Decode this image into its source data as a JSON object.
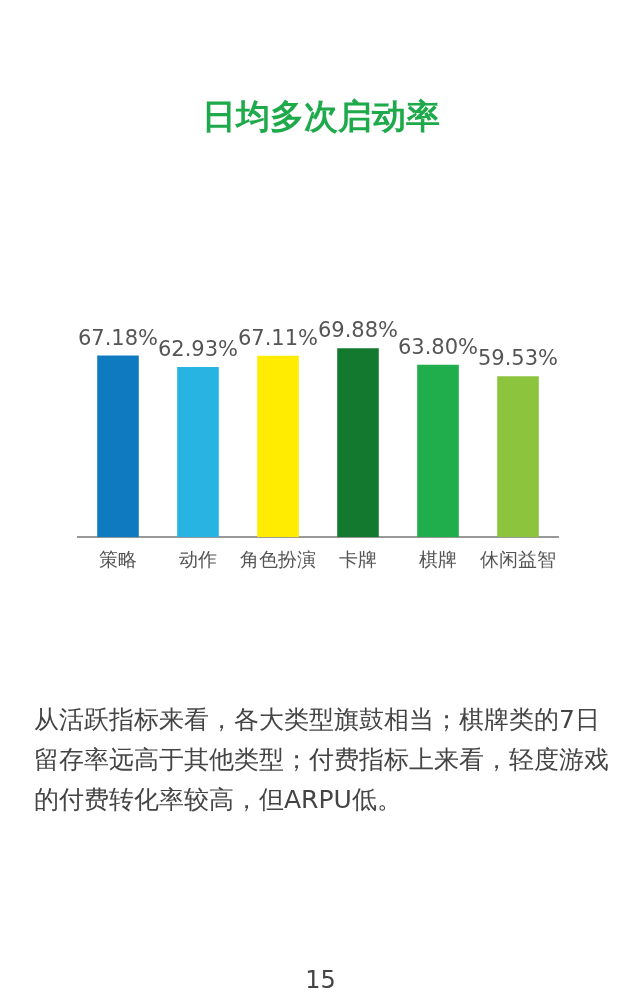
{
  "chart_data": {
    "type": "bar",
    "title": "日均多次启动率",
    "categories": [
      "策略",
      "动作",
      "角色扮演",
      "卡牌",
      "棋牌",
      "休闲益智"
    ],
    "values": [
      67.18,
      62.93,
      67.11,
      69.88,
      63.8,
      59.53
    ],
    "value_labels": [
      "67.18%",
      "62.93%",
      "67.11%",
      "69.88%",
      "63.80%",
      "59.53%"
    ],
    "colors": [
      "#0e7bc0",
      "#27b4e3",
      "#ffec00",
      "#12792e",
      "#20ad4b",
      "#8cc43e"
    ],
    "tick_labels": "x",
    "grid": false,
    "legend": false,
    "annotations": [
      "从活跃指标来看，各大类型旗鼓相当；棋牌类的7日留存率远高于其他类型；付费指标上来看，轻度游戏的付费转化率较高，但ARPU低。",
      "15"
    ]
  }
}
